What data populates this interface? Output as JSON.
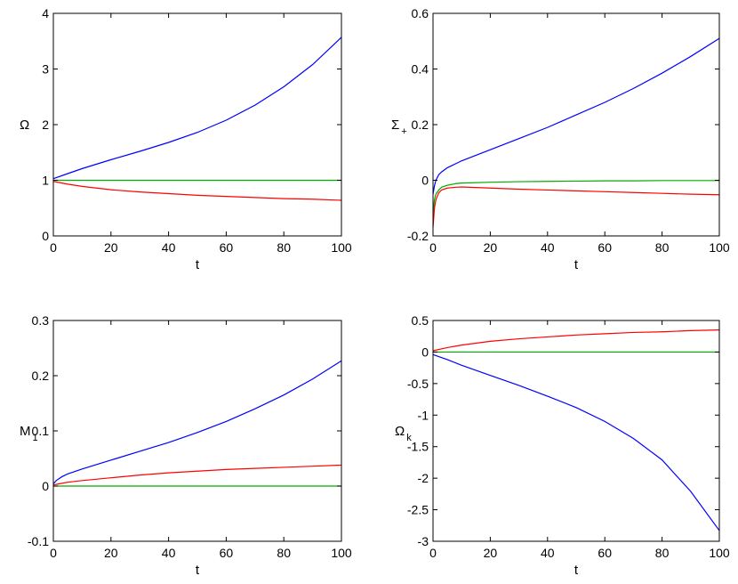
{
  "chart_data": [
    {
      "type": "line",
      "xlabel": "t",
      "ylabel": "Ω",
      "ylabel_sub": "",
      "xlim": [
        0,
        100
      ],
      "ylim": [
        0,
        4
      ],
      "xticks": [
        0,
        20,
        40,
        60,
        80,
        100
      ],
      "yticks": [
        0,
        1,
        2,
        3,
        4
      ],
      "ytick_labels": [
        "0",
        "1",
        "2",
        "3",
        "4"
      ],
      "grid": false,
      "x": [
        0,
        5,
        10,
        20,
        30,
        40,
        50,
        60,
        70,
        80,
        90,
        100
      ],
      "series": [
        {
          "color": "#0000ff",
          "values": [
            1.03,
            1.12,
            1.21,
            1.37,
            1.52,
            1.68,
            1.86,
            2.08,
            2.35,
            2.68,
            3.08,
            3.57
          ]
        },
        {
          "color": "#00aa00",
          "values": [
            1,
            1,
            1,
            1,
            1,
            1,
            1,
            1,
            1,
            1,
            1,
            1
          ]
        },
        {
          "color": "#ff0000",
          "values": [
            0.98,
            0.93,
            0.89,
            0.83,
            0.79,
            0.76,
            0.73,
            0.71,
            0.69,
            0.67,
            0.66,
            0.64
          ]
        }
      ]
    },
    {
      "type": "line",
      "xlabel": "t",
      "ylabel": "Σ",
      "ylabel_sub": "+",
      "xlim": [
        0,
        100
      ],
      "ylim": [
        -0.2,
        0.6
      ],
      "xticks": [
        0,
        20,
        40,
        60,
        80,
        100
      ],
      "yticks": [
        -0.2,
        0,
        0.2,
        0.4,
        0.6
      ],
      "ytick_labels": [
        "-0.2",
        "0",
        "0.2",
        "0.4",
        "0.6"
      ],
      "grid": false,
      "x": [
        0,
        0.5,
        1,
        2,
        3,
        5,
        8,
        10,
        20,
        30,
        40,
        50,
        60,
        70,
        80,
        90,
        100
      ],
      "series": [
        {
          "color": "#0000ff",
          "values": [
            -0.05,
            -0.02,
            0.0,
            0.02,
            0.03,
            0.045,
            0.06,
            0.07,
            0.11,
            0.15,
            0.19,
            0.235,
            0.28,
            0.33,
            0.385,
            0.445,
            0.51
          ]
        },
        {
          "color": "#00aa00",
          "values": [
            -0.12,
            -0.07,
            -0.05,
            -0.035,
            -0.025,
            -0.018,
            -0.012,
            -0.01,
            -0.007,
            -0.005,
            -0.004,
            -0.003,
            -0.002,
            -0.002,
            -0.001,
            -0.001,
            -0.001
          ]
        },
        {
          "color": "#ff0000",
          "values": [
            -0.17,
            -0.1,
            -0.07,
            -0.045,
            -0.035,
            -0.028,
            -0.025,
            -0.024,
            -0.028,
            -0.032,
            -0.035,
            -0.038,
            -0.041,
            -0.044,
            -0.047,
            -0.05,
            -0.052
          ]
        }
      ]
    },
    {
      "type": "line",
      "xlabel": "t",
      "ylabel": "M",
      "ylabel_sub": "1",
      "xlim": [
        0,
        100
      ],
      "ylim": [
        -0.1,
        0.3
      ],
      "xticks": [
        0,
        20,
        40,
        60,
        80,
        100
      ],
      "yticks": [
        -0.1,
        0,
        0.1,
        0.2,
        0.3
      ],
      "ytick_labels": [
        "-0.1",
        "0",
        "0.1",
        "0.2",
        "0.3"
      ],
      "grid": false,
      "x": [
        0,
        1,
        3,
        5,
        10,
        20,
        30,
        40,
        50,
        60,
        70,
        80,
        90,
        100
      ],
      "series": [
        {
          "color": "#0000ff",
          "values": [
            0.004,
            0.01,
            0.017,
            0.022,
            0.031,
            0.047,
            0.063,
            0.079,
            0.097,
            0.117,
            0.14,
            0.165,
            0.194,
            0.227
          ]
        },
        {
          "color": "#00aa00",
          "values": [
            0,
            0,
            0,
            0,
            0,
            0,
            0,
            0,
            0,
            0,
            0,
            0,
            0,
            0
          ]
        },
        {
          "color": "#ff0000",
          "values": [
            0.002,
            0.003,
            0.005,
            0.007,
            0.01,
            0.015,
            0.02,
            0.024,
            0.027,
            0.03,
            0.032,
            0.034,
            0.036,
            0.038
          ]
        }
      ]
    },
    {
      "type": "line",
      "xlabel": "t",
      "ylabel": "Ω",
      "ylabel_sub": "k",
      "xlim": [
        0,
        100
      ],
      "ylim": [
        -3,
        0.5
      ],
      "xticks": [
        0,
        20,
        40,
        60,
        80,
        100
      ],
      "yticks": [
        -3,
        -2.5,
        -2,
        -1.5,
        -1,
        -0.5,
        0,
        0.5
      ],
      "ytick_labels": [
        "-3",
        "-2.5",
        "-2",
        "-1.5",
        "-1",
        "-0.5",
        "0",
        "0.5"
      ],
      "grid": false,
      "x": [
        0,
        5,
        10,
        20,
        30,
        40,
        50,
        60,
        70,
        80,
        90,
        100
      ],
      "series": [
        {
          "color": "#ff0000",
          "values": [
            0.02,
            0.07,
            0.11,
            0.17,
            0.21,
            0.24,
            0.27,
            0.29,
            0.31,
            0.32,
            0.34,
            0.35
          ]
        },
        {
          "color": "#00aa00",
          "values": [
            0,
            0,
            0,
            0,
            0,
            0,
            0,
            0,
            0,
            0,
            0,
            0
          ]
        },
        {
          "color": "#0000ff",
          "values": [
            -0.04,
            -0.12,
            -0.21,
            -0.37,
            -0.53,
            -0.7,
            -0.88,
            -1.1,
            -1.37,
            -1.71,
            -2.21,
            -2.83
          ]
        }
      ]
    }
  ]
}
